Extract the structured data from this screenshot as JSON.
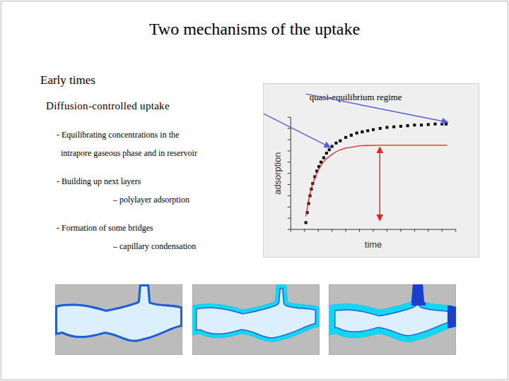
{
  "slide": {
    "title": "Two mechanisms of the uptake",
    "section": "Early times",
    "subtitle": "Diffusion-controlled uptake",
    "bullets": [
      {
        "lines": [
          "- Equilibrating concentrations in the",
          "intrapore gaseous phase and in reservoir"
        ]
      },
      {
        "lines": [
          "- Building up next layers"
        ],
        "sub": "– polylayer adsorption"
      },
      {
        "lines": [
          "- Formation of some bridges"
        ],
        "sub": "– capillary condensation"
      }
    ]
  },
  "chart_data": {
    "type": "line",
    "xlabel": "time",
    "ylabel": "adsorption",
    "annotation": "quasi-equilibrium regime",
    "xlim": [
      0,
      12
    ],
    "ylim": [
      0,
      10
    ],
    "xticks": [
      0,
      1,
      2,
      3,
      4,
      5,
      6,
      7,
      8,
      9,
      10,
      11,
      12
    ],
    "yticks": [
      0,
      1,
      2,
      3,
      4,
      5,
      6,
      7,
      8,
      9,
      10
    ],
    "tick_labels": false,
    "series": [
      {
        "type": "scatter",
        "marker": "square",
        "color": "#000000",
        "x": [
          1.1,
          1.2,
          1.3,
          1.4,
          1.5,
          1.6,
          1.75,
          1.9,
          2.05,
          2.2,
          2.4,
          2.6,
          2.8,
          3.0,
          3.3,
          3.6,
          4.0,
          4.4,
          4.8,
          5.2,
          5.6,
          6.0,
          6.5,
          7.0,
          7.5,
          8.0,
          8.5,
          9.0,
          9.5,
          10.0,
          10.5,
          11.0,
          11.3
        ],
        "values": [
          0.6,
          1.5,
          2.3,
          3.0,
          3.6,
          4.1,
          4.7,
          5.2,
          5.6,
          6.0,
          6.4,
          6.8,
          7.1,
          7.4,
          7.7,
          7.9,
          8.2,
          8.4,
          8.6,
          8.7,
          8.8,
          8.9,
          9.0,
          9.1,
          9.15,
          9.2,
          9.25,
          9.3,
          9.3,
          9.35,
          9.4,
          9.4,
          9.4
        ]
      },
      {
        "type": "line",
        "line_style": "solid",
        "color": "#e8211c",
        "x": [
          1.1,
          1.3,
          1.5,
          1.75,
          2.0,
          2.25,
          2.5,
          2.9,
          3.25,
          3.6,
          4.0,
          4.5,
          5.0,
          5.5,
          6.5,
          8.0,
          9.5,
          11.35
        ],
        "values": [
          1.2,
          2.6,
          3.7,
          4.6,
          5.3,
          5.8,
          6.2,
          6.6,
          6.9,
          7.1,
          7.25,
          7.35,
          7.45,
          7.48,
          7.5,
          7.5,
          7.5,
          7.5
        ]
      }
    ]
  }
}
